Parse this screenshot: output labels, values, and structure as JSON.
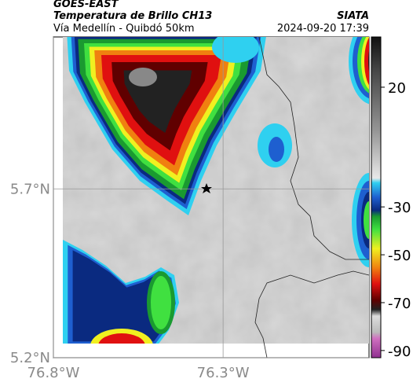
{
  "header": {
    "satellite": "GOES-EAST",
    "product": "Temperatura de Brillo CH13",
    "region": "Vía Medellín - Quibdó 50km",
    "source": "SIATA",
    "timestamp": "2024-09-20 17:39"
  },
  "map": {
    "xlim": [
      -76.8,
      -75.87
    ],
    "ylim": [
      5.2,
      6.15
    ],
    "xticks": [
      {
        "value": -76.8,
        "label": "76.8°W"
      },
      {
        "value": -76.3,
        "label": "76.3°W"
      }
    ],
    "yticks": [
      {
        "value": 5.7,
        "label": "5.7°N"
      },
      {
        "value": 5.2,
        "label": "5.2°N"
      }
    ],
    "grid": true
  },
  "colorbar": {
    "clim": [
      -93,
      41
    ],
    "ticks": [
      20,
      -30,
      -50,
      -70,
      -90
    ]
  }
}
